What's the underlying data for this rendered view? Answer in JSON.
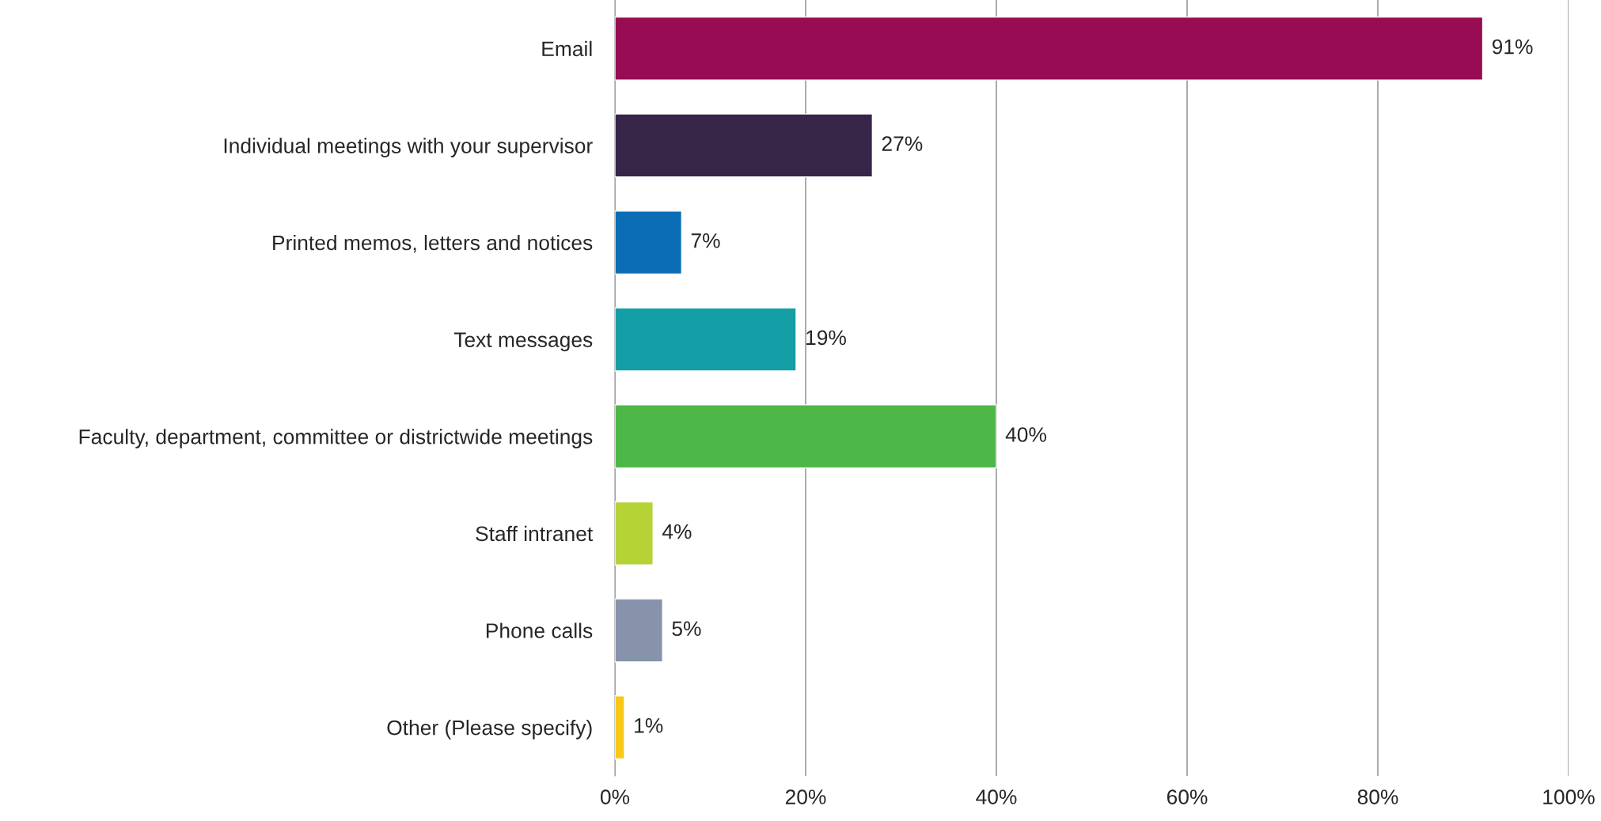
{
  "chart_data": {
    "type": "bar",
    "orientation": "horizontal",
    "categories": [
      "Email",
      "Individual meetings with your supervisor",
      "Printed memos, letters and notices",
      "Text messages",
      "Faculty, department, committee or districtwide meetings",
      "Staff intranet",
      "Phone calls",
      "Other (Please specify)"
    ],
    "values": [
      91,
      27,
      7,
      19,
      40,
      4,
      5,
      1
    ],
    "colors": [
      "#970c52",
      "#372648",
      "#0b6db5",
      "#139fa5",
      "#4db748",
      "#b5d334",
      "#8793ab",
      "#f7c815"
    ],
    "value_labels": [
      "91%",
      "27%",
      "7%",
      "19%",
      "40%",
      "4%",
      "5%",
      "1%"
    ],
    "xlim": [
      0,
      100
    ],
    "xticks": [
      {
        "value": 0,
        "label": "0%"
      },
      {
        "value": 20,
        "label": "20%"
      },
      {
        "value": 40,
        "label": "40%"
      },
      {
        "value": 60,
        "label": "60%"
      },
      {
        "value": 80,
        "label": "80%"
      },
      {
        "value": 100,
        "label": "100%"
      }
    ],
    "grid": "x",
    "legend": false
  }
}
